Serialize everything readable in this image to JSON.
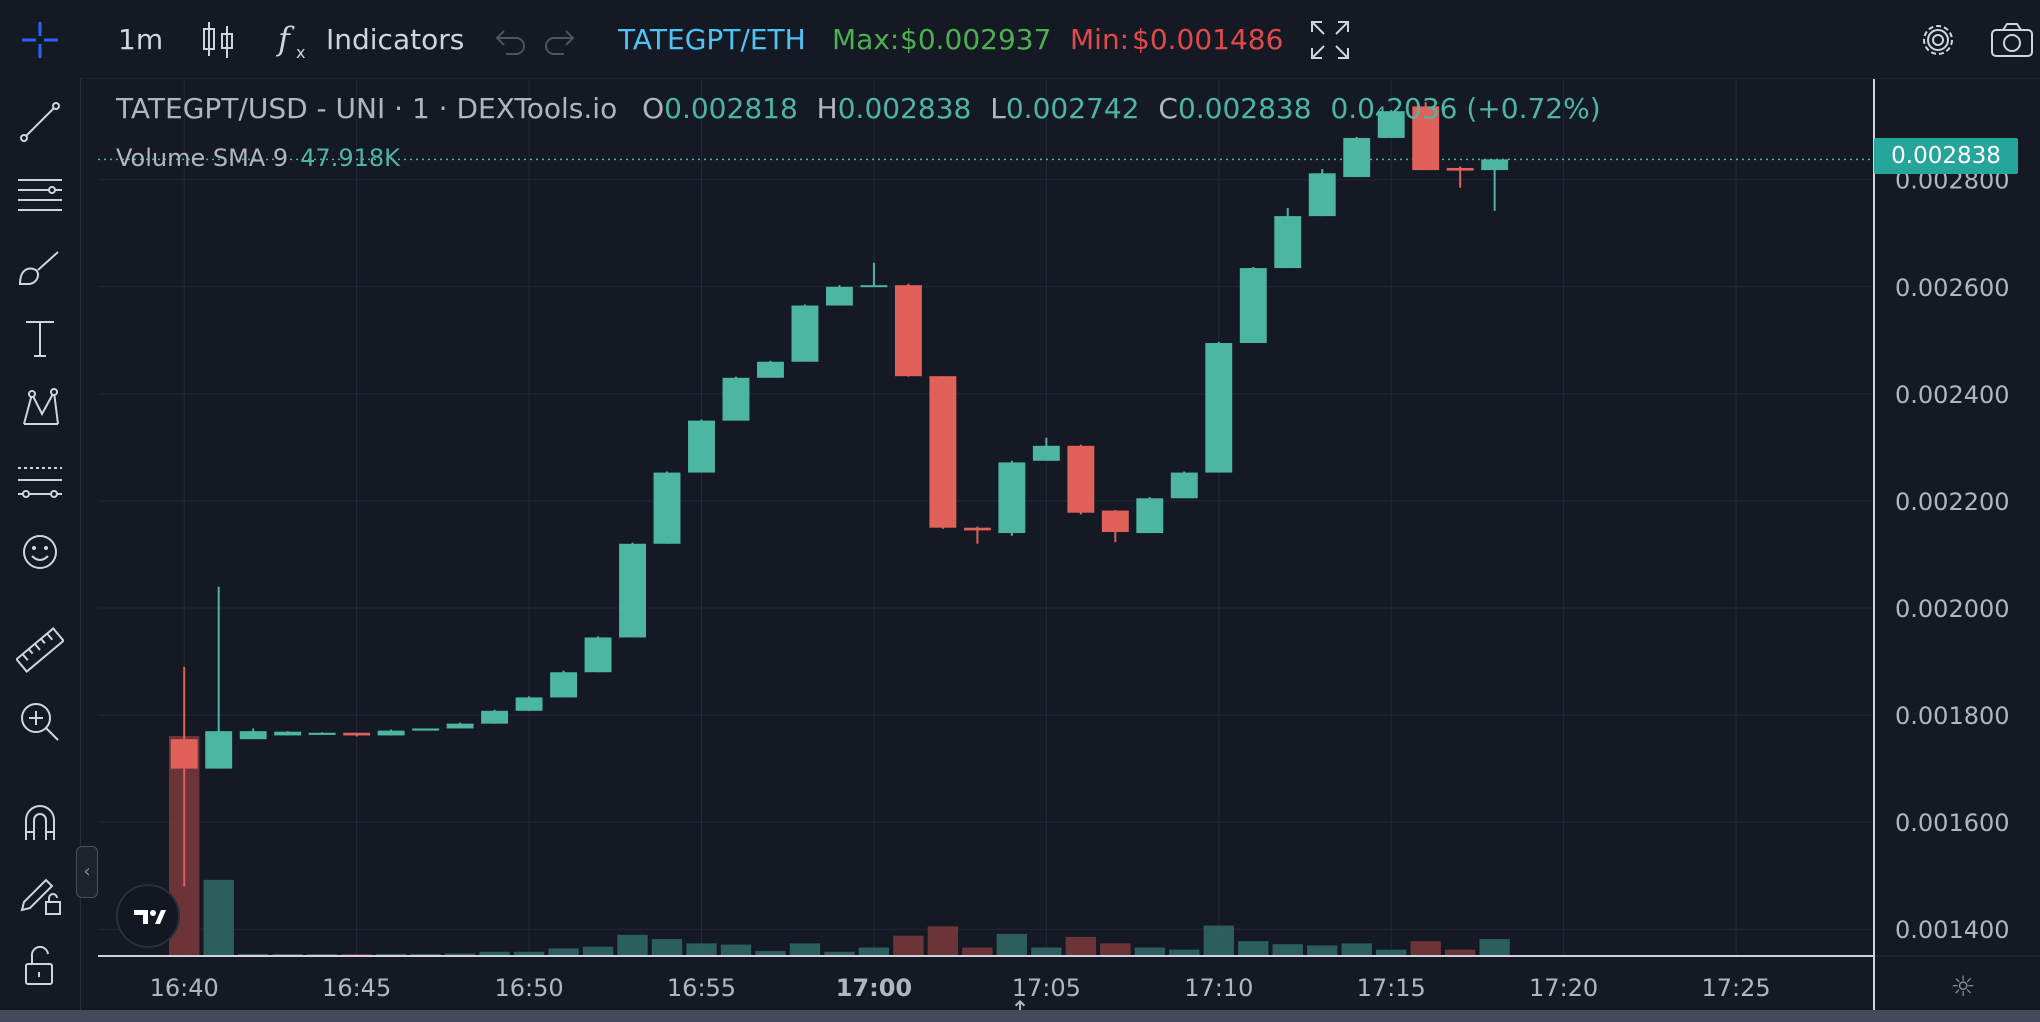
{
  "toolbar": {
    "interval": "1m",
    "indicators_label": "Indicators",
    "pair_link": "TATEGPT/ETH",
    "max_label": "Max:",
    "max_value": "$0.002937",
    "min_label": "Min:",
    "min_value": "$0.001486"
  },
  "legend": {
    "symbol": "TATEGPT/USD - UNI · 1 · DEXTools.io",
    "o_label": "O",
    "o_value": "0.002818",
    "h_label": "H",
    "h_value": "0.002838",
    "l_label": "L",
    "l_value": "0.002742",
    "c_label": "C",
    "c_value": "0.002838",
    "change": "0.0₄2036 (+0.72%)",
    "volume_label": "Volume SMA 9",
    "volume_value": "47.918K"
  },
  "last_price_label": "0.002838",
  "colors": {
    "up": "#4db6a2",
    "down": "#e0605a",
    "max": "#4caf50",
    "min": "#e04a4a",
    "pair": "#4fc3f7"
  },
  "icons": {
    "toolbar": [
      "chart-type-icon",
      "indicators-icon",
      "undo-icon",
      "redo-icon",
      "fullscreen-icon",
      "settings-icon",
      "camera-icon"
    ],
    "sidebar": [
      "crosshair-icon",
      "trendline-icon",
      "fib-icon",
      "brush-icon",
      "text-icon",
      "pattern-icon",
      "forecast-icon",
      "emoji-icon",
      "ruler-icon",
      "zoom-in-icon",
      "magnet-icon",
      "lock-drawing-icon",
      "lock-icon"
    ]
  },
  "chart_data": {
    "type": "candlestick",
    "interval_minutes": 1,
    "x_ticks": [
      "16:40",
      "16:45",
      "16:50",
      "16:55",
      "17:00",
      "17:05",
      "17:10",
      "17:15",
      "17:20",
      "17:25"
    ],
    "x_range": [
      "16:37:30",
      "17:29:00"
    ],
    "y_ticks": [
      "0.001400",
      "0.001600",
      "0.001800",
      "0.002000",
      "0.002200",
      "0.002400",
      "0.002600",
      "0.002800"
    ],
    "ylim": [
      0.00135,
      0.00299
    ],
    "grid": true,
    "last_price": 0.002838,
    "candles": [
      {
        "time": "16:40",
        "open": 0.001755,
        "high": 0.00189,
        "low": 0.00148,
        "close": 0.0017,
        "volume": 5.2
      },
      {
        "time": "16:41",
        "open": 0.0017,
        "high": 0.00204,
        "low": 0.0017,
        "close": 0.00177,
        "volume": 1.8
      },
      {
        "time": "16:42",
        "open": 0.001755,
        "high": 0.001775,
        "low": 0.001755,
        "close": 0.00177,
        "volume": 0.05
      },
      {
        "time": "16:43",
        "open": 0.001762,
        "high": 0.00177,
        "low": 0.001762,
        "close": 0.001769,
        "volume": 0.04
      },
      {
        "time": "16:44",
        "open": 0.001763,
        "high": 0.001768,
        "low": 0.001763,
        "close": 0.001767,
        "volume": 0.04
      },
      {
        "time": "16:45",
        "open": 0.001767,
        "high": 0.001767,
        "low": 0.00176,
        "close": 0.001762,
        "volume": 0.04
      },
      {
        "time": "16:46",
        "open": 0.001762,
        "high": 0.001773,
        "low": 0.001762,
        "close": 0.001771,
        "volume": 0.05
      },
      {
        "time": "16:47",
        "open": 0.001771,
        "high": 0.001775,
        "low": 0.001771,
        "close": 0.001775,
        "volume": 0.05
      },
      {
        "time": "16:48",
        "open": 0.001775,
        "high": 0.001786,
        "low": 0.001775,
        "close": 0.001784,
        "volume": 0.06
      },
      {
        "time": "16:49",
        "open": 0.001784,
        "high": 0.00181,
        "low": 0.001784,
        "close": 0.001808,
        "volume": 0.1
      },
      {
        "time": "16:50",
        "open": 0.001808,
        "high": 0.001835,
        "low": 0.001808,
        "close": 0.001833,
        "volume": 0.1
      },
      {
        "time": "16:51",
        "open": 0.001833,
        "high": 0.001883,
        "low": 0.001833,
        "close": 0.00188,
        "volume": 0.18
      },
      {
        "time": "16:52",
        "open": 0.00188,
        "high": 0.001947,
        "low": 0.00188,
        "close": 0.001945,
        "volume": 0.22
      },
      {
        "time": "16:53",
        "open": 0.001945,
        "high": 0.002122,
        "low": 0.001945,
        "close": 0.00212,
        "volume": 0.5
      },
      {
        "time": "16:54",
        "open": 0.00212,
        "high": 0.002255,
        "low": 0.00212,
        "close": 0.002253,
        "volume": 0.4
      },
      {
        "time": "16:55",
        "open": 0.002253,
        "high": 0.002352,
        "low": 0.002253,
        "close": 0.00235,
        "volume": 0.3
      },
      {
        "time": "16:56",
        "open": 0.00235,
        "high": 0.002432,
        "low": 0.00235,
        "close": 0.00243,
        "volume": 0.27
      },
      {
        "time": "16:57",
        "open": 0.00243,
        "high": 0.002462,
        "low": 0.00243,
        "close": 0.00246,
        "volume": 0.12
      },
      {
        "time": "16:58",
        "open": 0.00246,
        "high": 0.002567,
        "low": 0.00246,
        "close": 0.002565,
        "volume": 0.3
      },
      {
        "time": "16:59",
        "open": 0.002565,
        "high": 0.002603,
        "low": 0.002565,
        "close": 0.0026,
        "volume": 0.1
      },
      {
        "time": "17:00",
        "open": 0.0026,
        "high": 0.002645,
        "low": 0.0026,
        "close": 0.002603,
        "volume": 0.2
      },
      {
        "time": "17:01",
        "open": 0.002603,
        "high": 0.002606,
        "low": 0.002432,
        "close": 0.002433,
        "volume": 0.48
      },
      {
        "time": "17:02",
        "open": 0.002433,
        "high": 0.002433,
        "low": 0.002148,
        "close": 0.00215,
        "volume": 0.7
      },
      {
        "time": "17:03",
        "open": 0.00215,
        "high": 0.002152,
        "low": 0.00212,
        "close": 0.002145,
        "volume": 0.2
      },
      {
        "time": "17:04",
        "open": 0.00214,
        "high": 0.002275,
        "low": 0.002135,
        "close": 0.002272,
        "volume": 0.52
      },
      {
        "time": "17:05",
        "open": 0.002275,
        "high": 0.002318,
        "low": 0.002275,
        "close": 0.002303,
        "volume": 0.2
      },
      {
        "time": "17:06",
        "open": 0.002303,
        "high": 0.002305,
        "low": 0.002175,
        "close": 0.002178,
        "volume": 0.45
      },
      {
        "time": "17:07",
        "open": 0.002182,
        "high": 0.002183,
        "low": 0.002123,
        "close": 0.002142,
        "volume": 0.3
      },
      {
        "time": "17:08",
        "open": 0.00214,
        "high": 0.002207,
        "low": 0.00214,
        "close": 0.002205,
        "volume": 0.2
      },
      {
        "time": "17:09",
        "open": 0.002205,
        "high": 0.002255,
        "low": 0.002205,
        "close": 0.002253,
        "volume": 0.15
      },
      {
        "time": "17:10",
        "open": 0.002253,
        "high": 0.002497,
        "low": 0.002253,
        "close": 0.002495,
        "volume": 0.72
      },
      {
        "time": "17:11",
        "open": 0.002495,
        "high": 0.002637,
        "low": 0.002495,
        "close": 0.002635,
        "volume": 0.35
      },
      {
        "time": "17:12",
        "open": 0.002635,
        "high": 0.002747,
        "low": 0.002635,
        "close": 0.002732,
        "volume": 0.28
      },
      {
        "time": "17:13",
        "open": 0.002732,
        "high": 0.00282,
        "low": 0.002732,
        "close": 0.002812,
        "volume": 0.25
      },
      {
        "time": "17:14",
        "open": 0.002805,
        "high": 0.00288,
        "low": 0.002805,
        "close": 0.002878,
        "volume": 0.3
      },
      {
        "time": "17:15",
        "open": 0.002878,
        "high": 0.00293,
        "low": 0.002878,
        "close": 0.002928,
        "volume": 0.15
      },
      {
        "time": "17:16",
        "open": 0.002937,
        "high": 0.002945,
        "low": 0.002818,
        "close": 0.002818,
        "volume": 0.35
      },
      {
        "time": "17:17",
        "open": 0.002822,
        "high": 0.002825,
        "low": 0.002785,
        "close": 0.002817,
        "volume": 0.15
      },
      {
        "time": "17:18",
        "open": 0.002818,
        "high": 0.002838,
        "low": 0.002742,
        "close": 0.002838,
        "volume": 0.4
      }
    ]
  }
}
